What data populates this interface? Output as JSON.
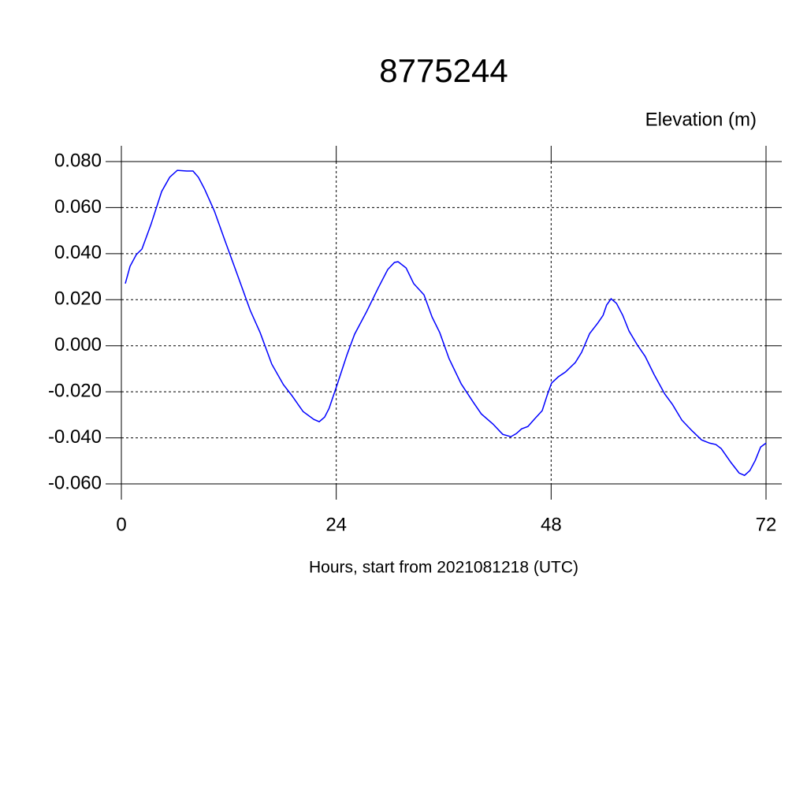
{
  "chart_data": {
    "type": "line",
    "title": "8775244",
    "subtitle": "Elevation (m)",
    "x_label": "Hours, start from 2021081218 (UTC)",
    "xlim": [
      0,
      72
    ],
    "xticks": [
      0,
      24,
      48,
      72
    ],
    "ylim": [
      -0.06,
      0.08
    ],
    "yticks": [
      {
        "value": -0.06,
        "label": "-0.060"
      },
      {
        "value": -0.04,
        "label": "-0.040"
      },
      {
        "value": -0.02,
        "label": "-0.020"
      },
      {
        "value": 0,
        "label": "0.000"
      },
      {
        "value": 0.02,
        "label": "0.020"
      },
      {
        "value": 0.04,
        "label": "0.040"
      },
      {
        "value": 0.06,
        "label": "0.060"
      },
      {
        "value": 0.08,
        "label": "0.080"
      }
    ],
    "grid": true,
    "series": [
      {
        "color": "#0000ff",
        "x": [
          0.44,
          0.97,
          1.67,
          2.3,
          3.3,
          4.5,
          5.4,
          6.25,
          7.3,
          8.0,
          8.6,
          9.3,
          10.4,
          11.5,
          12.85,
          14.4,
          15.5,
          16.8,
          18.1,
          19.0,
          20.3,
          21.5,
          22.1,
          22.7,
          23.2,
          24.1,
          25.2,
          26.05,
          27.4,
          28.7,
          29.75,
          30.5,
          30.9,
          31.8,
          32.65,
          33.8,
          34.7,
          35.56,
          36.6,
          37.96,
          39.3,
          40.2,
          41.5,
          42.6,
          43.5,
          44.1,
          44.7,
          45.4,
          46.1,
          47.0,
          47.6,
          48.05,
          48.8,
          49.6,
          50.7,
          51.4,
          52.3,
          53.2,
          53.8,
          54.2,
          54.7,
          55.3,
          56.0,
          56.7,
          57.6,
          58.5,
          59.5,
          60.7,
          61.55,
          62.6,
          63.7,
          64.8,
          65.7,
          66.4,
          67.0,
          68.1,
          69.0,
          69.6,
          70.2,
          70.8,
          71.4,
          72.0
        ],
        "values": [
          0.027,
          0.0345,
          0.0396,
          0.042,
          0.0526,
          0.067,
          0.0732,
          0.0762,
          0.0759,
          0.0759,
          0.0732,
          0.068,
          0.0584,
          0.0464,
          0.032,
          0.0153,
          0.0057,
          -0.008,
          -0.0169,
          -0.0214,
          -0.0286,
          -0.032,
          -0.033,
          -0.031,
          -0.0272,
          -0.0169,
          -0.0039,
          0.005,
          0.0149,
          0.0252,
          0.0331,
          0.0362,
          0.0365,
          0.0338,
          0.027,
          0.0221,
          0.0125,
          0.0057,
          -0.0056,
          -0.0166,
          -0.0245,
          -0.0296,
          -0.034,
          -0.0385,
          -0.0395,
          -0.0382,
          -0.0361,
          -0.0351,
          -0.032,
          -0.0282,
          -0.021,
          -0.0162,
          -0.0135,
          -0.0114,
          -0.0073,
          -0.0029,
          0.0053,
          0.0098,
          0.0132,
          0.0177,
          0.0204,
          0.0184,
          0.0132,
          0.0064,
          0.0005,
          -0.0046,
          -0.0125,
          -0.021,
          -0.0255,
          -0.0323,
          -0.0368,
          -0.0409,
          -0.0423,
          -0.0429,
          -0.0447,
          -0.0508,
          -0.0553,
          -0.0563,
          -0.0542,
          -0.0498,
          -0.044,
          -0.0423
        ]
      }
    ]
  }
}
